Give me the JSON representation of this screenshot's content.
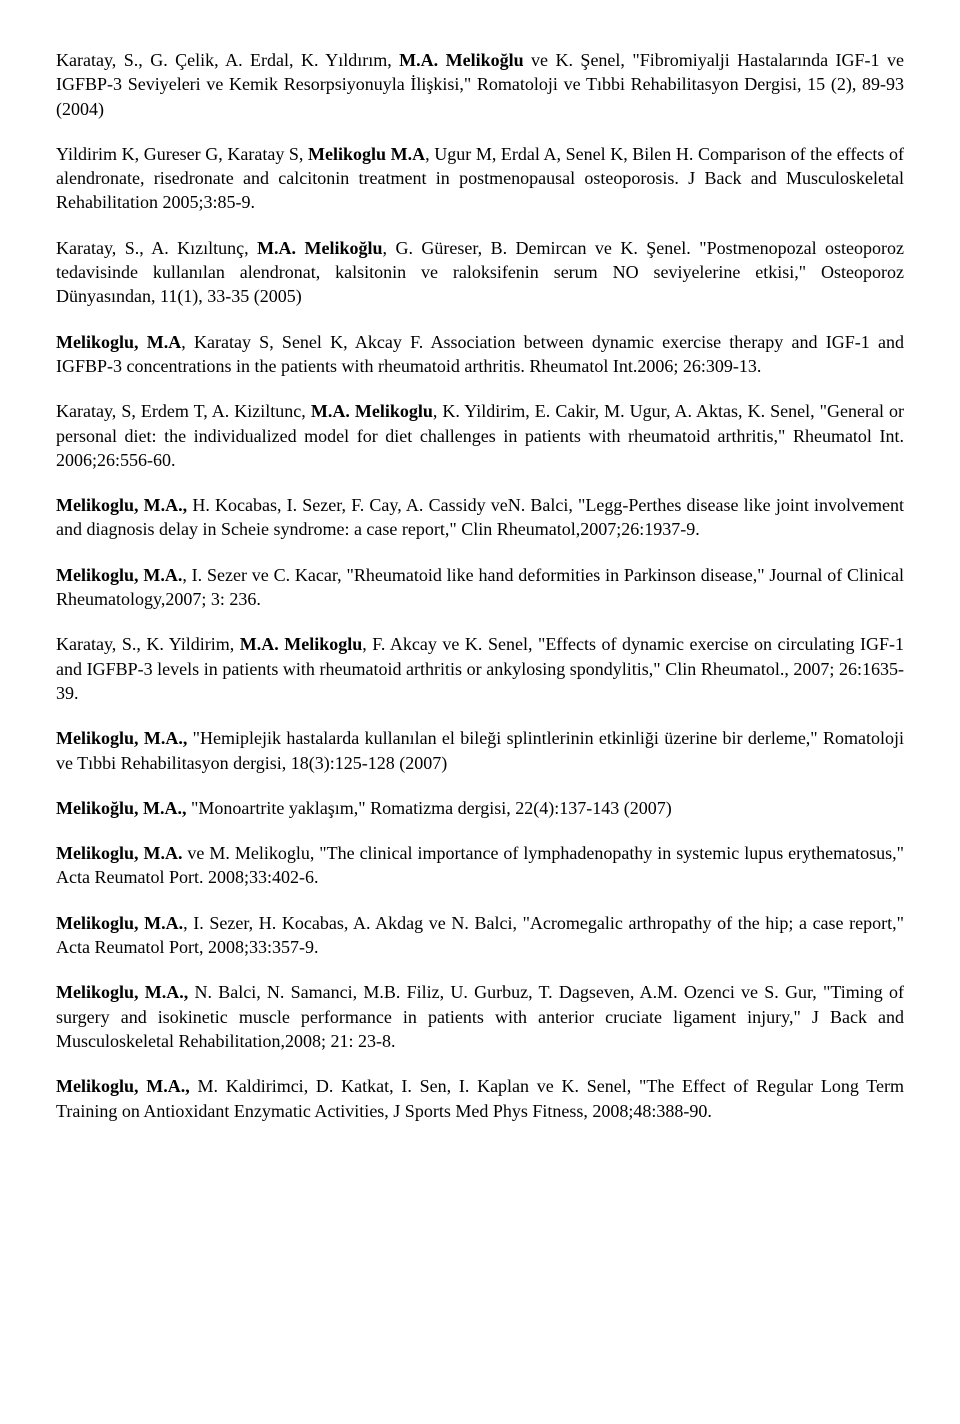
{
  "text_color": "#000000",
  "background_color": "#ffffff",
  "font_family": "Times New Roman",
  "font_size_pt": 14,
  "paragraphs": [
    {
      "runs": [
        {
          "t": "Karatay, S., G. Çelik, A. Erdal, K. Yıldırım, ",
          "b": false
        },
        {
          "t": "M.A. Melikoğlu",
          "b": true
        },
        {
          "t": " ve K. Şenel, \"Fibromiyalji Hastalarında IGF-1 ve IGFBP-3 Seviyeleri ve Kemik Resorpsiyonuyla İlişkisi,\" Romatoloji ve Tıbbi Rehabilitasyon Dergisi, 15 (2), 89-93 (2004)",
          "b": false
        }
      ]
    },
    {
      "runs": [
        {
          "t": "Yildirim K, Gureser G, Karatay S, ",
          "b": false
        },
        {
          "t": "Melikoglu M.A",
          "b": true
        },
        {
          "t": ", Ugur M, Erdal A, Senel K, Bilen H. Comparison of the effects of alendronate, risedronate and calcitonin treatment in postmenopausal osteoporosis. J Back and Musculoskeletal Rehabilitation 2005;3:85-9.",
          "b": false
        }
      ]
    },
    {
      "runs": [
        {
          "t": "Karatay, S., A. Kızıltunç, ",
          "b": false
        },
        {
          "t": "M.A. Melikoğlu",
          "b": true
        },
        {
          "t": ", G. Güreser, B. Demircan ve K. Şenel. \"Postmenopozal osteoporoz tedavisinde kullanılan alendronat, kalsitonin ve raloksifenin serum NO seviyelerine etkisi,\" Osteoporoz Dünyasından, 11(1), 33-35 (2005)",
          "b": false
        }
      ]
    },
    {
      "runs": [
        {
          "t": "Melikoglu, M.A",
          "b": true
        },
        {
          "t": ", Karatay S, Senel K, Akcay F. Association between dynamic exercise therapy and IGF-1 and IGFBP-3 concentrations in the patients with rheumatoid arthritis. Rheumatol Int.2006; 26:309-13.",
          "b": false
        }
      ]
    },
    {
      "runs": [
        {
          "t": "Karatay, S, Erdem T, A. Kiziltunc, ",
          "b": false
        },
        {
          "t": "M.A. Melikoglu",
          "b": true
        },
        {
          "t": ", K. Yildirim, E. Cakir, M. Ugur, A. Aktas, K. Senel, \"General or personal diet: the individualized model for diet challenges in patients with rheumatoid arthritis,\" Rheumatol Int. 2006;26:556-60.",
          "b": false
        }
      ]
    },
    {
      "runs": [
        {
          "t": "Melikoglu, M.A.,",
          "b": true
        },
        {
          "t": " H. Kocabas, I. Sezer, F. Cay, A. Cassidy veN. Balci, \"Legg-Perthes disease like joint involvement and diagnosis delay in Scheie syndrome: a case report,\" Clin Rheumatol,2007;26:1937-9.",
          "b": false
        }
      ]
    },
    {
      "runs": [
        {
          "t": "Melikoglu, M.A.",
          "b": true
        },
        {
          "t": ", I. Sezer ve C. Kacar, \"Rheumatoid like hand deformities in Parkinson disease,\" Journal of Clinical Rheumatology,2007; 3: 236.",
          "b": false
        }
      ]
    },
    {
      "runs": [
        {
          "t": "Karatay, S., K. Yildirim, ",
          "b": false
        },
        {
          "t": "M.A. Melikoglu",
          "b": true
        },
        {
          "t": ", F. Akcay ve K. Senel, \"Effects of dynamic exercise on circulating IGF-1 and IGFBP-3 levels in patients with rheumatoid arthritis or ankylosing spondylitis,\" Clin Rheumatol., 2007; 26:1635-39.",
          "b": false
        }
      ]
    },
    {
      "runs": [
        {
          "t": "Melikoglu, M.A.,",
          "b": true
        },
        {
          "t": " \"Hemiplejik hastalarda kullanılan el bileği splintlerinin etkinliği üzerine bir derleme,\" Romatoloji ve Tıbbi Rehabilitasyon dergisi, 18(3):125-128 (2007)",
          "b": false
        }
      ]
    },
    {
      "runs": [
        {
          "t": "Melikoğlu, M.A., ",
          "b": true
        },
        {
          "t": "\"Monoartrite yaklaşım,\" Romatizma dergisi, 22(4):137-143 (2007)",
          "b": false
        }
      ]
    },
    {
      "runs": [
        {
          "t": "Melikoglu, M.A.",
          "b": true
        },
        {
          "t": " ve M. Melikoglu, \"The clinical importance of lymphadenopathy in systemic lupus erythematosus,\" Acta Reumatol Port. 2008;33:402-6.",
          "b": false
        }
      ]
    },
    {
      "runs": [
        {
          "t": "Melikoglu, M.A.",
          "b": true
        },
        {
          "t": ", I. Sezer, H. Kocabas, A. Akdag ve N. Balci, \"Acromegalic arthropathy of the hip; a case report,\" Acta Reumatol Port, 2008;33:357-9.",
          "b": false
        }
      ]
    },
    {
      "runs": [
        {
          "t": "Melikoglu, M.A.,",
          "b": true
        },
        {
          "t": " N. Balci, N. Samanci, M.B. Filiz, U. Gurbuz, T. Dagseven, A.M. Ozenci ve S. Gur, \"Timing of surgery and isokinetic muscle performance in patients with anterior cruciate ligament injury,\" J Back and Musculoskeletal Rehabilitation,2008; 21: 23-8.",
          "b": false
        }
      ]
    },
    {
      "runs": [
        {
          "t": "Melikoglu, M.A.,",
          "b": true
        },
        {
          "t": " M. Kaldirimci, D. Katkat, I. Sen, I. Kaplan ve K. Senel, \"The Effect of Regular Long Term Training on Antioxidant Enzymatic Activities, J Sports Med Phys Fitness, 2008;48:388-90.",
          "b": false
        }
      ]
    }
  ]
}
